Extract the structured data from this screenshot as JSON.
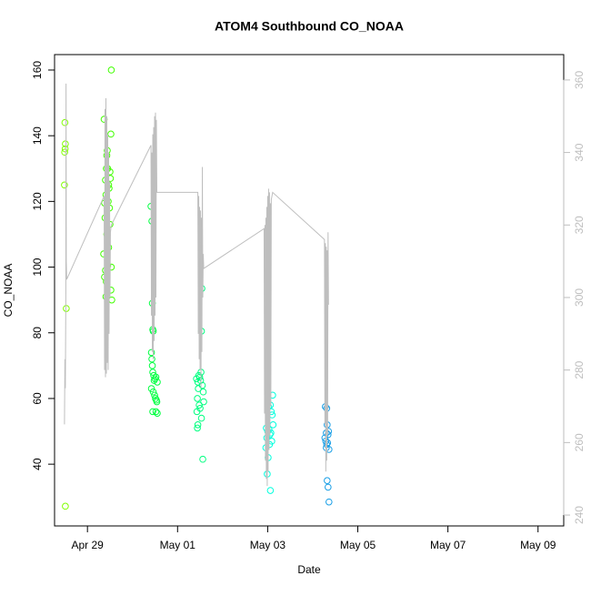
{
  "chart_data": {
    "type": "scatter",
    "title": "ATOM4 Southbound CO_NOAA",
    "x_label": "Date",
    "y_label": "CO_NOAA",
    "xlim": [
      -0.73,
      10.57
    ],
    "xticks": [
      {
        "value": 0,
        "label": "Apr 29"
      },
      {
        "value": 2,
        "label": "May 01"
      },
      {
        "value": 4,
        "label": "May 03"
      },
      {
        "value": 6,
        "label": "May 05"
      },
      {
        "value": 8,
        "label": "May 07"
      },
      {
        "value": 10,
        "label": "May 09"
      }
    ],
    "ylim": [
      21.2,
      164.7
    ],
    "yticks": [
      40,
      60,
      80,
      100,
      120,
      140,
      160
    ],
    "y2lim": [
      237,
      367
    ],
    "y2ticks": [
      240,
      260,
      280,
      300,
      320,
      340,
      360
    ],
    "series": [
      {
        "x": [
          -0.5,
          -0.49,
          -0.495,
          -0.505,
          -0.51,
          -0.47,
          -0.49,
          0.37,
          0.53,
          0.52,
          0.44,
          0.43,
          0.42,
          0.45,
          0.5,
          0.51,
          0.4,
          0.47,
          0.48,
          0.41,
          0.46,
          0.38,
          0.49,
          0.39,
          0.5,
          0.43,
          0.47,
          0.36,
          0.45,
          0.53,
          0.4,
          0.38,
          0.42,
          0.52,
          0.41,
          0.54,
          1.41,
          1.43,
          1.44,
          1.45,
          1.46,
          1.42,
          1.43,
          1.44,
          1.45,
          1.47,
          1.52,
          1.5,
          1.48,
          1.55,
          1.42,
          1.46,
          1.49,
          1.51,
          1.53,
          1.54,
          1.45,
          1.55,
          1.52,
          2.54,
          2.53,
          2.52,
          2.47,
          2.49,
          2.42,
          2.51,
          2.45,
          2.55,
          2.46,
          2.57,
          2.44,
          2.58,
          2.48,
          2.5,
          2.43,
          2.53,
          2.45,
          2.44,
          2.56,
          4.11,
          4.06,
          4.02,
          4.08,
          4.1,
          4.12,
          3.97,
          4.03,
          4.0,
          4.07,
          4.05,
          3.98,
          4.09,
          4.04,
          3.96,
          4.01,
          3.99,
          4.06,
          5.28,
          5.31,
          5.32,
          5.35,
          5.3,
          5.34,
          5.27,
          5.29,
          5.33,
          5.31,
          5.3,
          5.36,
          5.32,
          5.34,
          5.36
        ],
        "values": [
          144,
          137.5,
          136,
          135,
          125,
          87.4,
          27.2,
          145,
          160,
          140.5,
          135.5,
          134,
          130,
          130,
          129,
          127,
          126.5,
          125,
          124,
          122,
          120,
          119.5,
          118,
          115,
          113,
          110,
          106,
          104,
          100.5,
          100,
          99,
          97,
          95.5,
          93,
          91,
          90,
          118.5,
          114,
          89,
          81,
          80.5,
          74,
          72,
          70,
          68,
          67,
          66.5,
          66,
          65.5,
          65,
          63,
          62,
          61,
          60,
          59.5,
          59,
          56,
          55.5,
          56,
          93.5,
          80.5,
          68,
          67,
          66.5,
          66,
          65.5,
          65,
          64,
          63,
          62,
          60,
          59,
          58,
          57,
          56,
          54,
          52,
          51,
          41.5,
          61,
          58,
          57.5,
          56,
          55,
          52,
          51,
          50.5,
          50,
          49.5,
          49,
          48,
          47,
          46,
          45,
          42,
          37,
          32,
          57.5,
          57,
          52,
          50,
          49.5,
          49,
          48,
          47,
          46.5,
          46,
          45,
          44.5,
          35,
          33,
          28.5
        ],
        "colors": [
          "#80ff00",
          "#80ff00",
          "#80ff00",
          "#80ff00",
          "#80ff00",
          "#80ff00",
          "#80ff00",
          "#40ff00",
          "#40ff00",
          "#40ff00",
          "#40ff00",
          "#40ff00",
          "#40ff00",
          "#40ff00",
          "#40ff00",
          "#40ff00",
          "#40ff00",
          "#40ff00",
          "#40ff00",
          "#40ff00",
          "#40ff00",
          "#40ff00",
          "#40ff00",
          "#40ff00",
          "#40ff00",
          "#40ff00",
          "#40ff00",
          "#40ff00",
          "#40ff00",
          "#40ff00",
          "#40ff00",
          "#40ff00",
          "#40ff00",
          "#40ff00",
          "#40ff00",
          "#40ff00",
          "#00ff40",
          "#00ff40",
          "#00ff40",
          "#00ff40",
          "#00ff40",
          "#00ff40",
          "#00ff40",
          "#00ff40",
          "#00ff40",
          "#00ff40",
          "#00ff40",
          "#00ff40",
          "#00ff40",
          "#00ff40",
          "#00ff40",
          "#00ff40",
          "#00ff40",
          "#00ff40",
          "#00ff40",
          "#00ff40",
          "#00ff40",
          "#00ff40",
          "#00ff40",
          "#00ff80",
          "#00ff80",
          "#00ff80",
          "#00ff80",
          "#00ff80",
          "#00ff80",
          "#00ff80",
          "#00ff80",
          "#00ff80",
          "#00ff80",
          "#00ff80",
          "#00ff80",
          "#00ff80",
          "#00ff80",
          "#00ff80",
          "#00ff80",
          "#00ff80",
          "#00ff80",
          "#00ff80",
          "#00ff80",
          "#00ffdd",
          "#00ffdd",
          "#00ffdd",
          "#00ffdd",
          "#00ffdd",
          "#00ffdd",
          "#00ffdd",
          "#00ffdd",
          "#00ffdd",
          "#00ffdd",
          "#00ffdd",
          "#00ffdd",
          "#00ffdd",
          "#00ffdd",
          "#00ffdd",
          "#00ffdd",
          "#00ffdd",
          "#00ffdd",
          "#1a9fe6",
          "#1a9fe6",
          "#1a9fe6",
          "#1a9fe6",
          "#1a9fe6",
          "#1a9fe6",
          "#1a9fe6",
          "#1a9fe6",
          "#1a9fe6",
          "#1a9fe6",
          "#1a9fe6",
          "#1a9fe6",
          "#1a9fe6",
          "#1a9fe6",
          "#1a9fe6"
        ]
      },
      {
        "type": "line",
        "axis": "y2",
        "color": "#bebebe",
        "x": [
          -0.51,
          -0.5,
          -0.49,
          -0.48,
          -0.475,
          -0.47,
          -0.46,
          0.37,
          0.38,
          0.39,
          0.4,
          0.41,
          0.42,
          0.43,
          0.44,
          0.45,
          0.46,
          0.47,
          0.48,
          0.49,
          0.5,
          0.51,
          0.53,
          1.41,
          1.42,
          1.43,
          1.44,
          1.45,
          1.46,
          1.47,
          1.48,
          1.49,
          1.5,
          1.51,
          1.52,
          1.53,
          1.54,
          2.45,
          2.46,
          2.47,
          2.48,
          2.49,
          2.5,
          2.51,
          2.52,
          2.53,
          2.54,
          2.55,
          2.56,
          2.57,
          2.58,
          3.92,
          3.93,
          3.94,
          3.95,
          3.96,
          3.97,
          3.98,
          3.99,
          4.0,
          4.01,
          4.02,
          4.03,
          4.04,
          4.05,
          4.06,
          4.07,
          4.08,
          4.11,
          5.26,
          5.27,
          5.28,
          5.29,
          5.3,
          5.31,
          5.32,
          5.33,
          5.34,
          5.35
        ],
        "values": [
          265,
          283,
          275,
          300,
          359,
          310,
          305,
          328,
          280,
          352,
          278,
          355,
          279,
          350,
          282,
          345,
          280,
          340,
          290,
          332,
          300,
          318,
          320,
          342,
          295,
          340,
          285,
          345,
          283,
          347,
          288,
          350,
          295,
          351,
          300,
          349,
          329,
          329,
          290,
          328,
          283,
          325,
          280,
          324,
          275,
          322,
          285,
          336,
          300,
          312,
          308,
          319,
          268,
          320,
          255,
          322,
          250,
          325,
          248,
          328,
          252,
          330,
          258,
          329,
          262,
          326,
          270,
          327,
          329,
          316,
          265,
          315,
          252,
          314,
          255,
          313,
          262,
          318,
          298
        ]
      }
    ]
  }
}
